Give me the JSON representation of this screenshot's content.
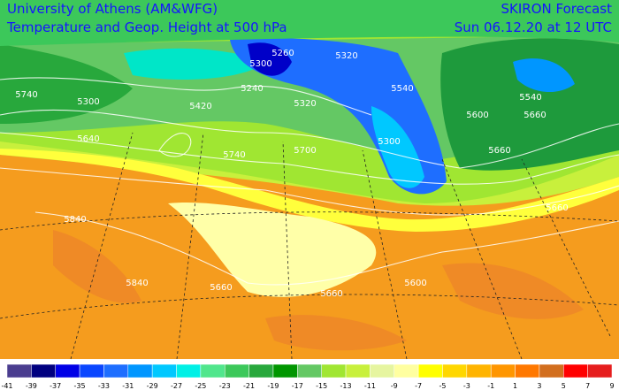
{
  "header": {
    "left": [
      "University of Athens (AM&WFG)",
      "Temperature and Geop. Height at 500 hPa"
    ],
    "right": [
      "SKIRON Forecast",
      "Sun 06.12.20 at 12 UTC"
    ]
  },
  "contour_labels": [
    "5740",
    "5300",
    "5420",
    "5300",
    "5240",
    "5260",
    "5320",
    "5320",
    "5540",
    "5600",
    "5660",
    "5640",
    "5740",
    "5700",
    "5660",
    "5840",
    "5840",
    "5660",
    "5660",
    "5600",
    "5660",
    "5300",
    "5540"
  ],
  "colorbar": {
    "labels": [
      -41,
      -39,
      -37,
      -35,
      -33,
      -31,
      -29,
      -27,
      -25,
      -23,
      -21,
      -19,
      -17,
      -15,
      -13,
      -11,
      -9,
      -7,
      -5,
      -3,
      -1,
      1,
      3,
      5,
      7,
      9
    ],
    "colors": [
      "#4a3d8f",
      "#000080",
      "#0000e6",
      "#0a46ff",
      "#1e6eff",
      "#0096ff",
      "#00c8ff",
      "#00f0e6",
      "#50e68c",
      "#3cc85a",
      "#28a83c",
      "#009600",
      "#64c864",
      "#a0e632",
      "#c8f03c",
      "#e6f5a0",
      "#ffffa0",
      "#ffff00",
      "#ffd700",
      "#ffb400",
      "#ff9600",
      "#ff7800",
      "#d26e1e",
      "#ff0000",
      "#e61e1e",
      "#c8006e",
      "#ff00ff"
    ]
  }
}
